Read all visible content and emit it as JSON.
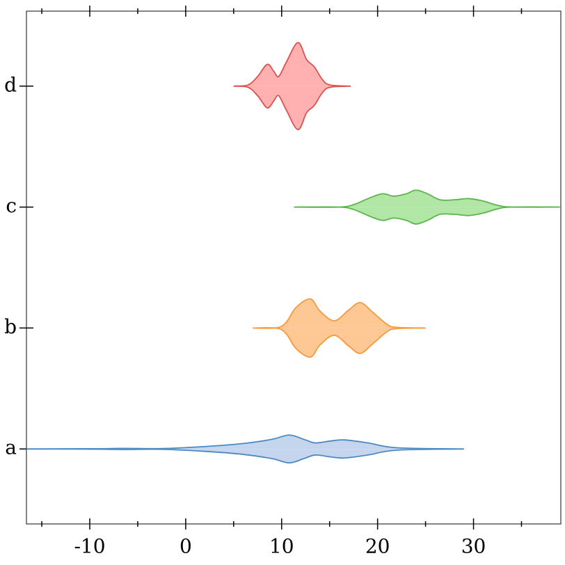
{
  "chart_data": {
    "type": "violin",
    "series": [
      {
        "name": "a",
        "color": "#4a8ac4",
        "fill": "#c5d5ee",
        "x": [
          -16.6,
          -9,
          -6.5,
          -2.5,
          2,
          6,
          9,
          10.8,
          12.3,
          13.5,
          15,
          16.5,
          19,
          22,
          29
        ],
        "values": [
          0,
          0.002,
          0.005,
          0.003,
          0.02,
          0.045,
          0.08,
          0.115,
          0.08,
          0.05,
          0.065,
          0.075,
          0.05,
          0.01,
          0
        ]
      },
      {
        "name": "b",
        "color": "#f5993d",
        "fill": "#fec895",
        "x": [
          7,
          9.5,
          10.5,
          11.5,
          13,
          14,
          15.5,
          17,
          18.2,
          19.5,
          21,
          22,
          25
        ],
        "values": [
          0,
          0.002,
          0.05,
          0.17,
          0.24,
          0.14,
          0.06,
          0.15,
          0.21,
          0.13,
          0.03,
          0.005,
          0
        ]
      },
      {
        "name": "c",
        "color": "#5ab54b",
        "fill": "#b2e6a6",
        "x": [
          11.3,
          16,
          17.5,
          19,
          20.5,
          21.7,
          23,
          24,
          25.2,
          26.5,
          28,
          29.5,
          31,
          32.5,
          34,
          39
        ],
        "values": [
          0,
          0,
          0.02,
          0.07,
          0.11,
          0.09,
          0.11,
          0.14,
          0.11,
          0.06,
          0.06,
          0.07,
          0.05,
          0.015,
          0,
          0
        ]
      },
      {
        "name": "d",
        "color": "#d9534f",
        "fill": "#ffb0b0",
        "x": [
          5,
          6.5,
          7.5,
          8.5,
          9.2,
          9.7,
          10.5,
          11.7,
          12.6,
          13.4,
          14.2,
          15,
          17.2
        ],
        "values": [
          0,
          0.01,
          0.08,
          0.18,
          0.12,
          0.08,
          0.2,
          0.36,
          0.22,
          0.16,
          0.06,
          0.01,
          0
        ]
      }
    ],
    "xlim": [
      -16.6,
      39.1
    ],
    "xticks": [
      -10,
      0,
      10,
      20,
      30
    ],
    "xminor_ticks": [
      -15,
      -5,
      5,
      15,
      25,
      35
    ],
    "ylim": [
      -0.62,
      3.62
    ]
  }
}
